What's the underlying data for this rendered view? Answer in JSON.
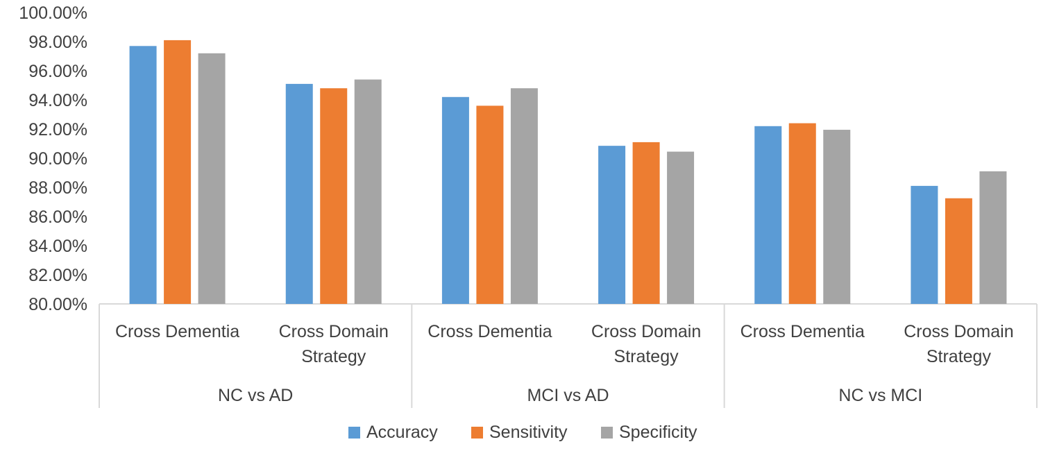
{
  "chart_data": {
    "type": "bar",
    "title": "",
    "xlabel": "",
    "ylabel": "",
    "ylim": [
      80,
      100
    ],
    "y_ticks": [
      80,
      82,
      84,
      86,
      88,
      90,
      92,
      94,
      96,
      98,
      100
    ],
    "y_tick_format": "percent_2dp",
    "y_tick_labels": [
      "80.00%",
      "82.00%",
      "84.00%",
      "86.00%",
      "88.00%",
      "90.00%",
      "92.00%",
      "94.00%",
      "96.00%",
      "98.00%",
      "100.00%"
    ],
    "groups": [
      {
        "label": "NC vs AD",
        "categories": [
          [
            "Cross Dementia"
          ],
          [
            "Cross Domain",
            "Strategy"
          ]
        ]
      },
      {
        "label": "MCI vs AD",
        "categories": [
          [
            "Cross Dementia"
          ],
          [
            "Cross Domain",
            "Strategy"
          ]
        ]
      },
      {
        "label": "NC vs MCI",
        "categories": [
          [
            "Cross Dementia"
          ],
          [
            "Cross Domain",
            "Strategy"
          ]
        ]
      }
    ],
    "series": [
      {
        "name": "Accuracy",
        "color": "#5b9bd5",
        "values": [
          97.7,
          95.1,
          94.2,
          90.85,
          92.2,
          88.1
        ]
      },
      {
        "name": "Sensitivity",
        "color": "#ed7d31",
        "values": [
          98.1,
          94.8,
          93.6,
          91.1,
          92.4,
          87.25
        ]
      },
      {
        "name": "Specificity",
        "color": "#a5a5a5",
        "values": [
          97.2,
          95.4,
          94.8,
          90.45,
          91.95,
          89.1
        ]
      }
    ],
    "legend_position": "bottom",
    "grid": false
  }
}
